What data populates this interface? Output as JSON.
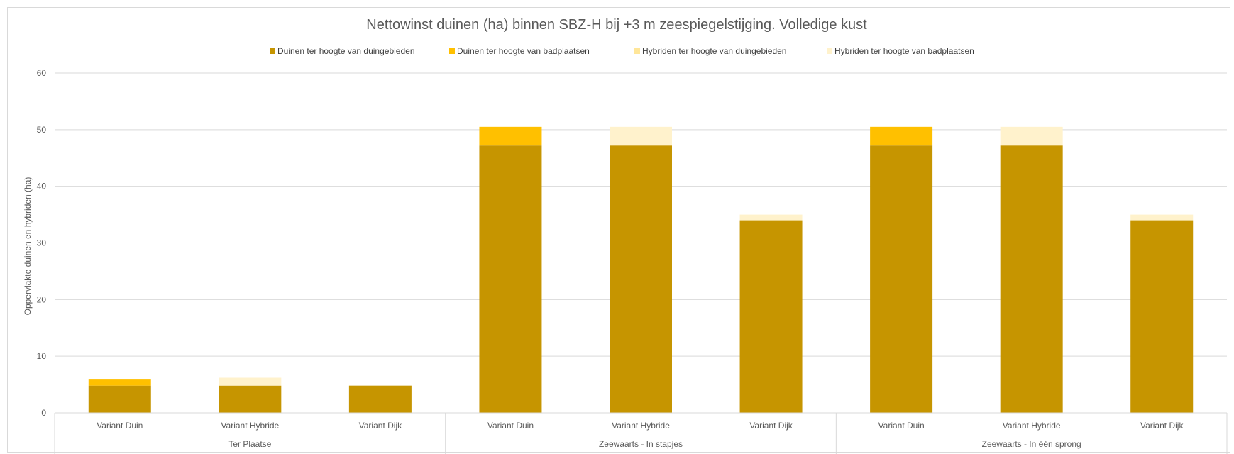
{
  "chart_data": {
    "type": "bar",
    "stacked": true,
    "title": "Nettowinst duinen (ha) binnen SBZ-H bij +3 m zeespiegelstijging. Volledige kust",
    "ylabel": "Oppervlakte duinen en hybriden (ha)",
    "xlabel": "",
    "ylim": [
      0,
      60
    ],
    "yticks": [
      0,
      10,
      20,
      30,
      40,
      50,
      60
    ],
    "grid": true,
    "legend_position": "top",
    "categories": [
      "Variant Duin",
      "Variant Hybride",
      "Variant Dijk",
      "Variant Duin",
      "Variant Hybride",
      "Variant Dijk",
      "Variant Duin",
      "Variant Hybride",
      "Variant Dijk"
    ],
    "groups": [
      {
        "label": "Ter Plaatse",
        "count": 3
      },
      {
        "label": "Zeewaarts - In stapjes",
        "count": 3
      },
      {
        "label": "Zeewaarts - In één sprong",
        "count": 3
      }
    ],
    "series": [
      {
        "name": "Duinen ter hoogte van duingebieden",
        "color": "#C69500",
        "values": [
          4.8,
          4.8,
          4.8,
          47.2,
          47.2,
          34.0,
          47.2,
          47.2,
          34.0
        ]
      },
      {
        "name": "Duinen ter hoogte van badplaatsen",
        "color": "#FFC000",
        "values": [
          1.2,
          0,
          0,
          3.3,
          0,
          0,
          3.3,
          0,
          0
        ]
      },
      {
        "name": "Hybriden ter hoogte van duingebieden",
        "color": "#FFE699",
        "values": [
          0,
          0,
          0,
          0,
          0,
          0,
          0,
          0,
          0
        ]
      },
      {
        "name": "Hybriden ter hoogte van badplaatsen",
        "color": "#FFF2CC",
        "values": [
          0,
          1.4,
          0,
          0,
          3.3,
          1.0,
          0,
          3.3,
          1.0
        ]
      }
    ]
  }
}
